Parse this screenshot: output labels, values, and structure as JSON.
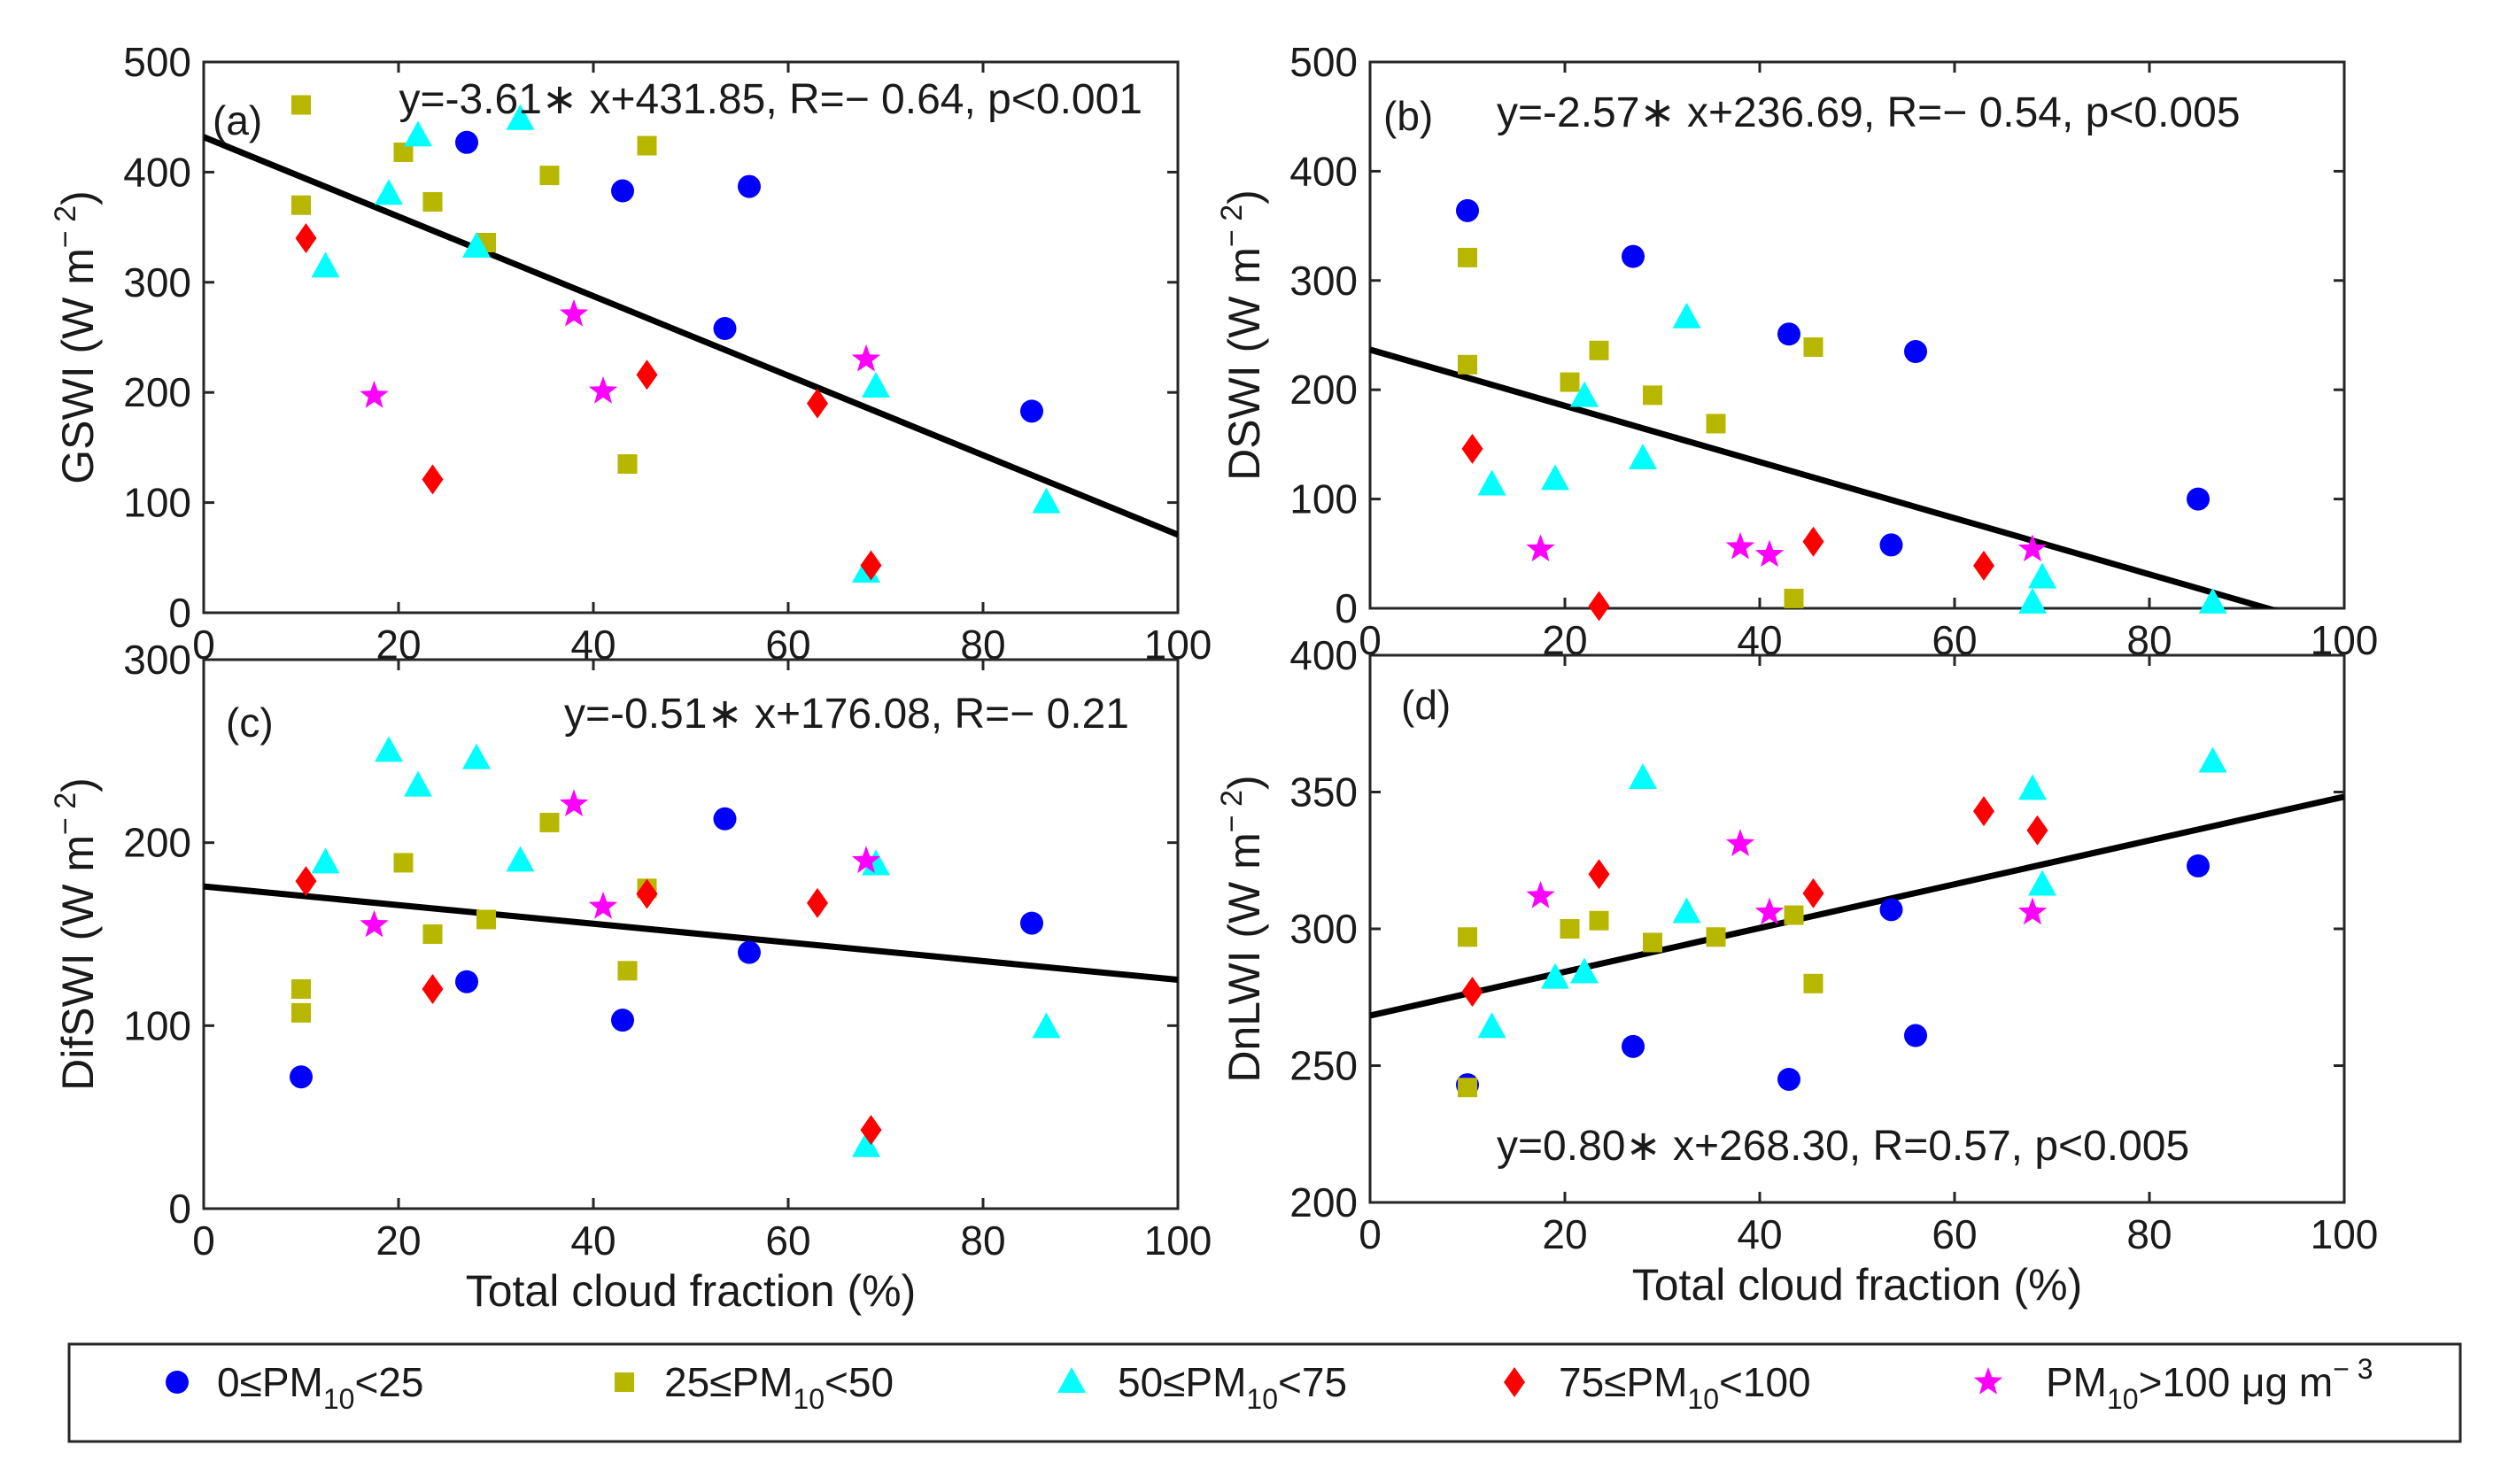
{
  "series_defs": [
    {
      "name": "0≤PM10<25",
      "marker": "circle",
      "color": "#0000ff",
      "legend": {
        "pre": "0≤PM",
        "sub": "10",
        "post": "<25",
        "unit": "",
        "unit_sup": ""
      }
    },
    {
      "name": "25≤PM10<50",
      "marker": "square",
      "color": "#b7b700",
      "legend": {
        "pre": "25≤PM",
        "sub": "10",
        "post": "<50",
        "unit": "",
        "unit_sup": ""
      }
    },
    {
      "name": "50≤PM10<75",
      "marker": "triangle",
      "color": "#00ffff",
      "legend": {
        "pre": "50≤PM",
        "sub": "10",
        "post": "<75",
        "unit": "",
        "unit_sup": ""
      }
    },
    {
      "name": "75≤PM10<100",
      "marker": "diamond",
      "color": "#ff0000",
      "legend": {
        "pre": "75≤PM",
        "sub": "10",
        "post": "<100",
        "unit": "",
        "unit_sup": ""
      }
    },
    {
      "name": "PM10>100 μg m-3",
      "marker": "star",
      "color": "#ff00ff",
      "legend": {
        "pre": "PM",
        "sub": "10",
        "post": ">100 ",
        "unit": "μg m",
        "unit_sup": "− 3"
      }
    }
  ],
  "chart_data": [
    {
      "type": "scatter",
      "panel": "(a)",
      "ylabel": "GSWI (W m",
      "ylabel_sup": "− 2",
      "ylabel_close": ")",
      "xlabel": "",
      "xlim": [
        0,
        100
      ],
      "ylim": [
        0,
        500
      ],
      "xticks": [
        "0",
        "20",
        "40",
        "60",
        "80",
        "100"
      ],
      "yticks": [
        "0",
        "100",
        "200",
        "300",
        "400",
        "500"
      ],
      "equation": "y=-3.61∗ x+431.85, R=− 0.64, p<0.001",
      "fit": {
        "slope": -3.61,
        "intercept": 431.85
      },
      "series": [
        {
          "name": "0≤PM10<25",
          "points": [
            [
              27,
              427
            ],
            [
              43,
              383
            ],
            [
              56,
              387
            ],
            [
              53.5,
              258
            ],
            [
              85,
              183
            ]
          ]
        },
        {
          "name": "25≤PM10<50",
          "points": [
            [
              10,
              461
            ],
            [
              10,
              370
            ],
            [
              20.5,
              418
            ],
            [
              23.5,
              373
            ],
            [
              29,
              336
            ],
            [
              35.5,
              397
            ],
            [
              45.5,
              424
            ],
            [
              43.5,
              135
            ]
          ]
        },
        {
          "name": "50≤PM10<75",
          "points": [
            [
              22,
              433
            ],
            [
              32.5,
              448
            ],
            [
              19,
              380
            ],
            [
              28,
              332
            ],
            [
              12.5,
              314
            ],
            [
              69,
              205
            ],
            [
              68,
              37
            ],
            [
              86.5,
              100
            ]
          ]
        },
        {
          "name": "75≤PM10<100",
          "points": [
            [
              10.5,
              340
            ],
            [
              45.5,
              216
            ],
            [
              63,
              190
            ],
            [
              23.5,
              121
            ],
            [
              68.5,
              43
            ]
          ]
        },
        {
          "name": "PM10>100 μg m-3",
          "points": [
            [
              38,
              271
            ],
            [
              68,
              230
            ],
            [
              17.5,
              197
            ],
            [
              41,
              201
            ]
          ]
        }
      ]
    },
    {
      "type": "scatter",
      "panel": "(b)",
      "ylabel": "DSWI (W m",
      "ylabel_sup": "− 2",
      "ylabel_close": ")",
      "xlabel": "",
      "xlim": [
        0,
        100
      ],
      "ylim": [
        0,
        500
      ],
      "xticks": [
        "0",
        "20",
        "40",
        "60",
        "80",
        "100"
      ],
      "yticks": [
        "0",
        "100",
        "200",
        "300",
        "400",
        "500"
      ],
      "equation": "y=-2.57∗ x+236.69, R=− 0.54, p<0.005",
      "fit": {
        "slope": -2.57,
        "intercept": 236.69
      },
      "series": [
        {
          "name": "0≤PM10<25",
          "points": [
            [
              10,
              364
            ],
            [
              27,
              322
            ],
            [
              43,
              251
            ],
            [
              56,
              235
            ],
            [
              53.5,
              58
            ],
            [
              85,
              100
            ]
          ]
        },
        {
          "name": "25≤PM10<50",
          "points": [
            [
              10,
              321
            ],
            [
              10,
              223
            ],
            [
              20.5,
              207
            ],
            [
              23.5,
              236
            ],
            [
              29,
              195
            ],
            [
              35.5,
              169
            ],
            [
              45.5,
              239
            ],
            [
              43.5,
              9
            ]
          ]
        },
        {
          "name": "50≤PM10<75",
          "points": [
            [
              32.5,
              266
            ],
            [
              22,
              194
            ],
            [
              28,
              137
            ],
            [
              12.5,
              113
            ],
            [
              19,
              118
            ],
            [
              68,
              5
            ],
            [
              69,
              28
            ],
            [
              86.5,
              5
            ]
          ]
        },
        {
          "name": "75≤PM10<100",
          "points": [
            [
              10.5,
              146
            ],
            [
              45.5,
              61
            ],
            [
              63,
              39
            ],
            [
              23.5,
              2
            ]
          ]
        },
        {
          "name": "PM10>100 μg m-3",
          "points": [
            [
              17.5,
              54
            ],
            [
              38,
              56
            ],
            [
              41,
              49
            ],
            [
              68,
              54
            ]
          ]
        }
      ]
    },
    {
      "type": "scatter",
      "panel": "(c)",
      "ylabel": "DifSWI (W m",
      "ylabel_sup": "− 2",
      "ylabel_close": ")",
      "xlabel": "Total cloud fraction (%)",
      "xlim": [
        0,
        100
      ],
      "ylim": [
        0,
        300
      ],
      "xticks": [
        "0",
        "20",
        "40",
        "60",
        "80",
        "100"
      ],
      "yticks": [
        "0",
        "100",
        "200",
        "300"
      ],
      "equation": "y=-0.51∗ x+176.08, R=− 0.21",
      "fit": {
        "slope": -0.51,
        "intercept": 176.08
      },
      "series": [
        {
          "name": "0≤PM10<25",
          "points": [
            [
              10,
              72
            ],
            [
              27,
              124
            ],
            [
              43,
              103
            ],
            [
              53.5,
              213
            ],
            [
              56,
              140
            ],
            [
              85,
              156
            ]
          ]
        },
        {
          "name": "25≤PM10<50",
          "points": [
            [
              10,
              120
            ],
            [
              10,
              107
            ],
            [
              20.5,
              189
            ],
            [
              23.5,
              150
            ],
            [
              29,
              158
            ],
            [
              35.5,
              211
            ],
            [
              45.5,
              175
            ],
            [
              43.5,
              130
            ]
          ]
        },
        {
          "name": "50≤PM10<75",
          "points": [
            [
              19,
              250
            ],
            [
              22,
              231
            ],
            [
              28,
              246
            ],
            [
              12.5,
              189
            ],
            [
              32.5,
              190
            ],
            [
              69,
              188
            ],
            [
              68,
              34
            ],
            [
              86.5,
              99
            ]
          ]
        },
        {
          "name": "75≤PM10<100",
          "points": [
            [
              10.5,
              179
            ],
            [
              45.5,
              172
            ],
            [
              63,
              167
            ],
            [
              23.5,
              120
            ],
            [
              68.5,
              43
            ]
          ]
        },
        {
          "name": "PM10>100 μg m-3",
          "points": [
            [
              38,
              221
            ],
            [
              17.5,
              155
            ],
            [
              41,
              165
            ],
            [
              68,
              190
            ]
          ]
        }
      ]
    },
    {
      "type": "scatter",
      "panel": "(d)",
      "ylabel": "DnLWI (W m",
      "ylabel_sup": "− 2",
      "ylabel_close": ")",
      "xlabel": "Total cloud fraction (%)",
      "xlim": [
        0,
        100
      ],
      "ylim": [
        200,
        400
      ],
      "xticks": [
        "0",
        "20",
        "40",
        "60",
        "80",
        "100"
      ],
      "yticks": [
        "200",
        "250",
        "300",
        "350",
        "400"
      ],
      "equation": "y=0.80∗ x+268.30, R=0.57, p<0.005",
      "fit": {
        "slope": 0.8,
        "intercept": 268.3
      },
      "series": [
        {
          "name": "0≤PM10<25",
          "points": [
            [
              10,
              243
            ],
            [
              27,
              257
            ],
            [
              43,
              245
            ],
            [
              53.5,
              307
            ],
            [
              56,
              261
            ],
            [
              85,
              323
            ]
          ]
        },
        {
          "name": "25≤PM10<50",
          "points": [
            [
              10,
              297
            ],
            [
              10,
              242
            ],
            [
              20.5,
              300
            ],
            [
              23.5,
              303
            ],
            [
              29,
              295
            ],
            [
              35.5,
              297
            ],
            [
              43.5,
              305
            ],
            [
              45.5,
              280
            ]
          ]
        },
        {
          "name": "50≤PM10<75",
          "points": [
            [
              28,
              355
            ],
            [
              19,
              282
            ],
            [
              22,
              284
            ],
            [
              12.5,
              264
            ],
            [
              32.5,
              306
            ],
            [
              68,
              351
            ],
            [
              69,
              316
            ],
            [
              86.5,
              361
            ]
          ]
        },
        {
          "name": "75≤PM10<100",
          "points": [
            [
              10.5,
              277
            ],
            [
              23.5,
              320
            ],
            [
              45.5,
              313
            ],
            [
              63,
              343
            ],
            [
              68.5,
              336
            ]
          ]
        },
        {
          "name": "PM10>100 μg m-3",
          "points": [
            [
              17.5,
              312
            ],
            [
              38,
              331
            ],
            [
              41,
              306
            ],
            [
              68,
              306
            ]
          ]
        }
      ]
    }
  ]
}
